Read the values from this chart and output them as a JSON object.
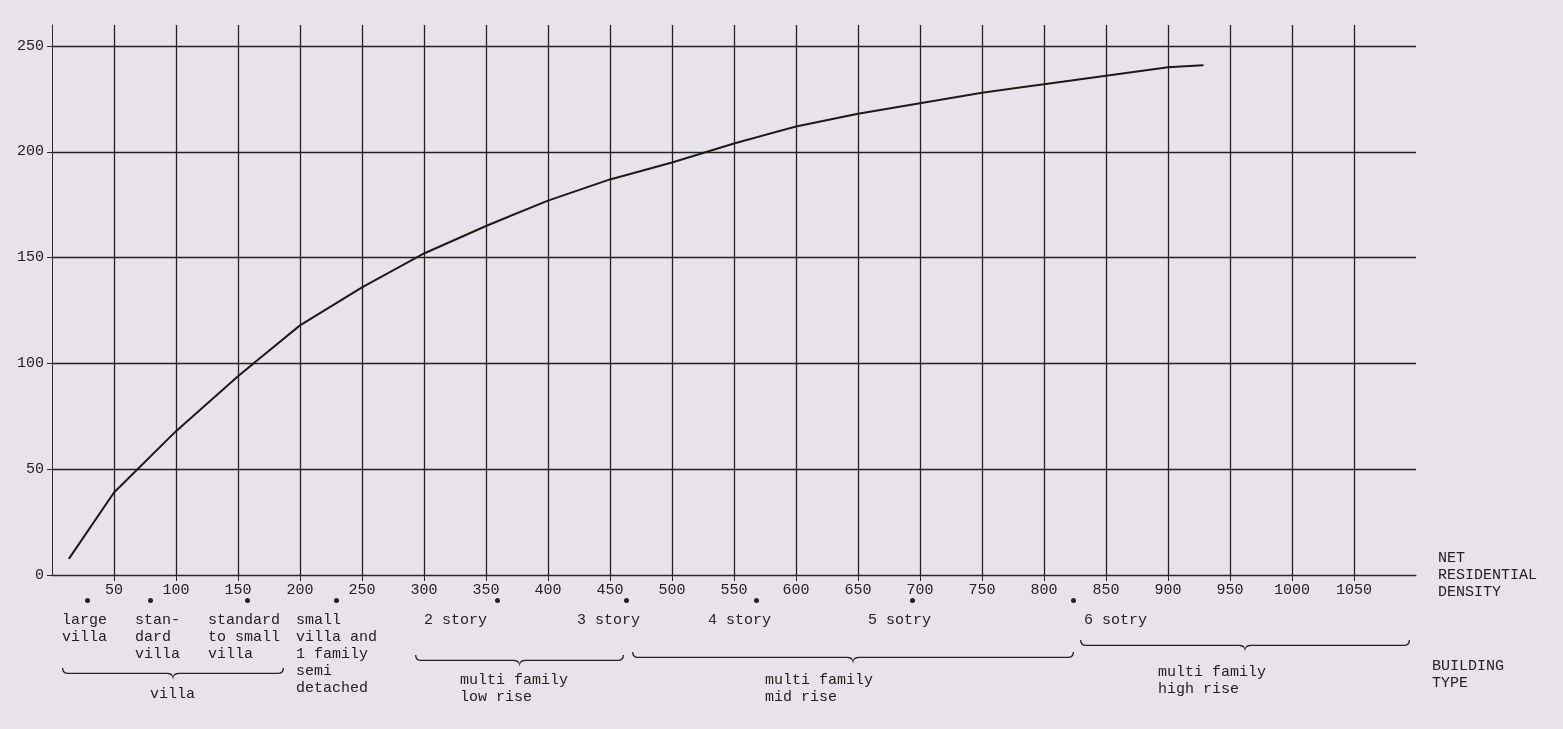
{
  "chart_data": {
    "type": "line",
    "xlabel": "NET\nRESIDENTIAL\nDENSITY",
    "x": [
      14,
      50,
      100,
      150,
      200,
      250,
      300,
      350,
      400,
      450,
      500,
      550,
      600,
      650,
      700,
      750,
      800,
      850,
      900,
      928
    ],
    "series": [
      {
        "color": "#1a1a1a",
        "values": [
          8,
          39,
          68,
          94,
          118,
          136,
          152,
          165,
          177,
          187,
          195,
          204,
          212,
          218,
          223,
          228,
          232,
          236,
          240,
          241
        ]
      }
    ],
    "xlim": [
      0,
      1100
    ],
    "xticks": [
      50,
      100,
      150,
      200,
      250,
      300,
      350,
      400,
      450,
      500,
      550,
      600,
      650,
      700,
      750,
      800,
      850,
      900,
      950,
      1000,
      1050
    ],
    "ylim": [
      0,
      260
    ],
    "yticks": [
      0,
      50,
      100,
      150,
      200,
      250
    ],
    "grid": true,
    "marker": "none",
    "line_style": "solid",
    "annotations": [
      "large\nvilla",
      "stan-\ndard\nvilla",
      "standard\nto small\nvilla",
      "small\nvilla and\n1 family\nsemi\ndetached",
      "2 story",
      "3 story",
      "4 story",
      "5 sotry",
      "6 sotry",
      "villa",
      "multi family\nlow rise",
      "multi family\nmid rise",
      "multi family\nhigh rise",
      "BUILDING\nTYPE"
    ]
  }
}
